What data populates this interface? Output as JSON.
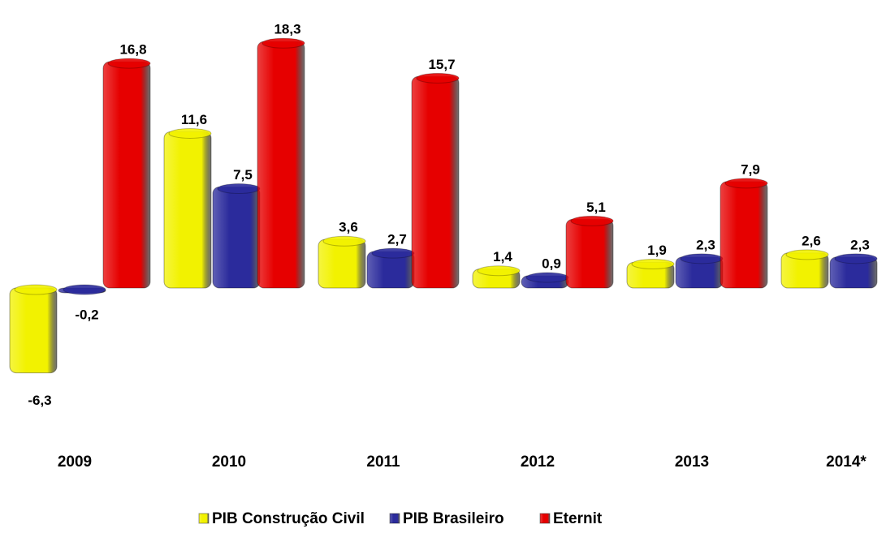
{
  "chart_data": {
    "type": "bar",
    "categories": [
      "2009",
      "2010",
      "2011",
      "2012",
      "2013",
      "2014*"
    ],
    "series": [
      {
        "name": "PIB Construção Civil",
        "color": "#f2f200",
        "values": [
          -6.3,
          11.6,
          3.6,
          1.4,
          1.9,
          2.6
        ],
        "value_labels": [
          "-6,3",
          "11,6",
          "3,6",
          "1,4",
          "1,9",
          "2,6"
        ]
      },
      {
        "name": "PIB Brasileiro",
        "color": "#2b2b9c",
        "values": [
          -0.2,
          7.5,
          2.7,
          0.9,
          2.3,
          2.3
        ],
        "value_labels": [
          "-0,2",
          "7,5",
          "2,7",
          "0,9",
          "2,3",
          "2,3"
        ]
      },
      {
        "name": "Eternit",
        "color": "#e60000",
        "values": [
          16.8,
          18.3,
          15.7,
          5.1,
          7.9,
          null
        ],
        "value_labels": [
          "16,8",
          "18,3",
          "15,7",
          "5,1",
          "7,9",
          null
        ]
      }
    ],
    "legend": "bottom"
  }
}
